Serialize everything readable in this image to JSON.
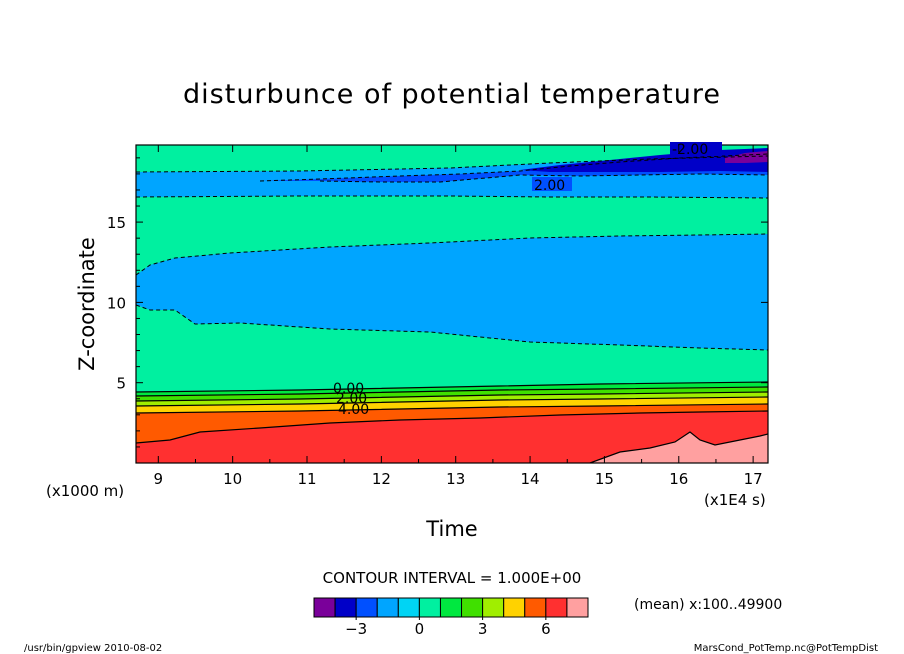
{
  "chart_data": {
    "type": "contour",
    "title": "disturbunce of potential temperature",
    "xlabel": "Time",
    "ylabel": "Z-coordinate",
    "x_unit": "(x1E4 s)",
    "y_unit": "(x1000 m)",
    "xlim": [
      8.7,
      17.2
    ],
    "ylim": [
      0.0,
      19.8
    ],
    "x_ticks": [
      9,
      10,
      11,
      12,
      13,
      14,
      15,
      16,
      17
    ],
    "y_ticks": [
      5,
      10,
      15
    ],
    "contour_interval_text": "CONTOUR INTERVAL = 1.000E+00",
    "subset_text": "(mean) x:100..49900",
    "levels": [
      -4,
      -3,
      -2,
      -1,
      0,
      1,
      2,
      3,
      4,
      5,
      6,
      7
    ],
    "colorbar_colors": [
      "#7a009a",
      "#0000c8",
      "#0050ff",
      "#00a5ff",
      "#00d4f4",
      "#00f0a0",
      "#00e840",
      "#40e000",
      "#a0ee00",
      "#ffd200",
      "#ff5a00",
      "#ff3030",
      "#ffa0a0"
    ],
    "colorbar_tick_labels": [
      "−3",
      "0",
      "3",
      "6"
    ],
    "contour_labels": [
      "-2.00",
      "2.00",
      "0.00",
      "2.00",
      "4.00"
    ],
    "band_colors": {
      "deep_red": "#ff3030",
      "pink": "#ffa0a0",
      "orange": "#ff5a00",
      "yellow": "#ffd200",
      "yellowgreen": "#a0ee00",
      "lime": "#40e000",
      "green": "#00e840",
      "spring": "#00f0a0",
      "cyan": "#00d4f4",
      "sky": "#00a5ff",
      "blue": "#0050ff",
      "navy": "#0000c8",
      "purple": "#7a009a"
    }
  },
  "footer": {
    "left": "/usr/bin/gpview  2010-08-02",
    "right": "MarsCond_PotTemp.nc@PotTempDist"
  }
}
